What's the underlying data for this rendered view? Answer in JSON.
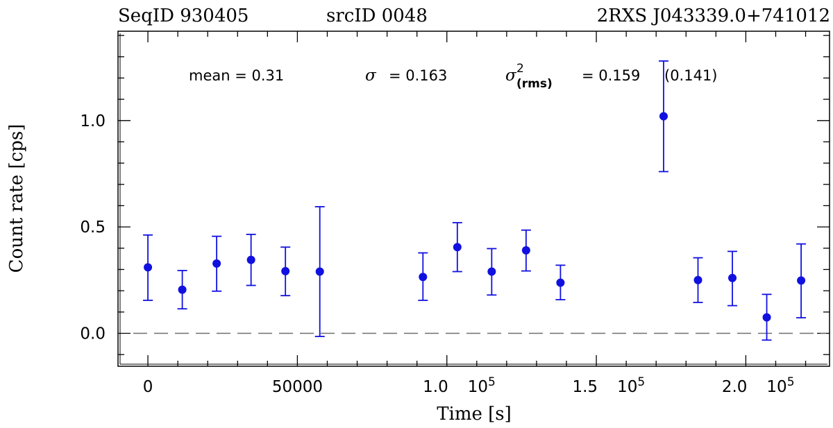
{
  "header": {
    "seq_label": "SeqID  930405",
    "src_label": "srcID  0048",
    "name_label": "2RXS  J043339.0+741012"
  },
  "stats": {
    "mean_text": "mean  =  0.31",
    "sigma_symbol": "σ",
    "sigma_value": "=  0.163",
    "rms_symbol": "σ",
    "rms_sup": "2",
    "rms_sub": "(rms)",
    "rms_value": "=  0.159",
    "rms_extra": "(0.141)"
  },
  "colors": {
    "series": "#1010e0",
    "axis": "#000000",
    "zero_line": "#6e6e6e"
  },
  "chart_data": {
    "type": "scatter",
    "title": "",
    "xlabel": "Time  [s]",
    "ylabel": "Count  rate  [cps]",
    "xlim": [
      -10000,
      228000
    ],
    "ylim": [
      -0.155,
      1.42
    ],
    "x_ticks": [
      {
        "value": 0,
        "label": "0",
        "suffix": ""
      },
      {
        "value": 50000,
        "label": "50000",
        "suffix": ""
      },
      {
        "value": 100000,
        "label": "1.0",
        "suffix": "10^5"
      },
      {
        "value": 150000,
        "label": "1.5",
        "suffix": "10^5"
      },
      {
        "value": 200000,
        "label": "2.0",
        "suffix": "10^5"
      }
    ],
    "y_ticks": [
      {
        "value": 0.0,
        "label": "0.0"
      },
      {
        "value": 0.5,
        "label": "0.5"
      },
      {
        "value": 1.0,
        "label": "1.0"
      }
    ],
    "reference_line": {
      "y": 0,
      "style": "dashed"
    },
    "series": [
      {
        "name": "count rate",
        "x": [
          0,
          11500,
          23000,
          34500,
          46000,
          57500,
          92000,
          103500,
          115000,
          126500,
          138000,
          172500,
          184000,
          195500,
          207000,
          218500
        ],
        "y": [
          0.31,
          0.205,
          0.328,
          0.345,
          0.292,
          0.29,
          0.265,
          0.405,
          0.29,
          0.39,
          0.238,
          1.02,
          0.25,
          0.26,
          0.075,
          0.248
        ],
        "yerr_low": [
          0.155,
          0.09,
          0.13,
          0.12,
          0.115,
          0.305,
          0.11,
          0.115,
          0.11,
          0.097,
          0.08,
          0.26,
          0.105,
          0.13,
          0.107,
          0.175
        ],
        "yerr_high": [
          0.152,
          0.09,
          0.128,
          0.12,
          0.113,
          0.305,
          0.113,
          0.115,
          0.108,
          0.095,
          0.082,
          0.26,
          0.105,
          0.125,
          0.108,
          0.172
        ]
      }
    ]
  }
}
